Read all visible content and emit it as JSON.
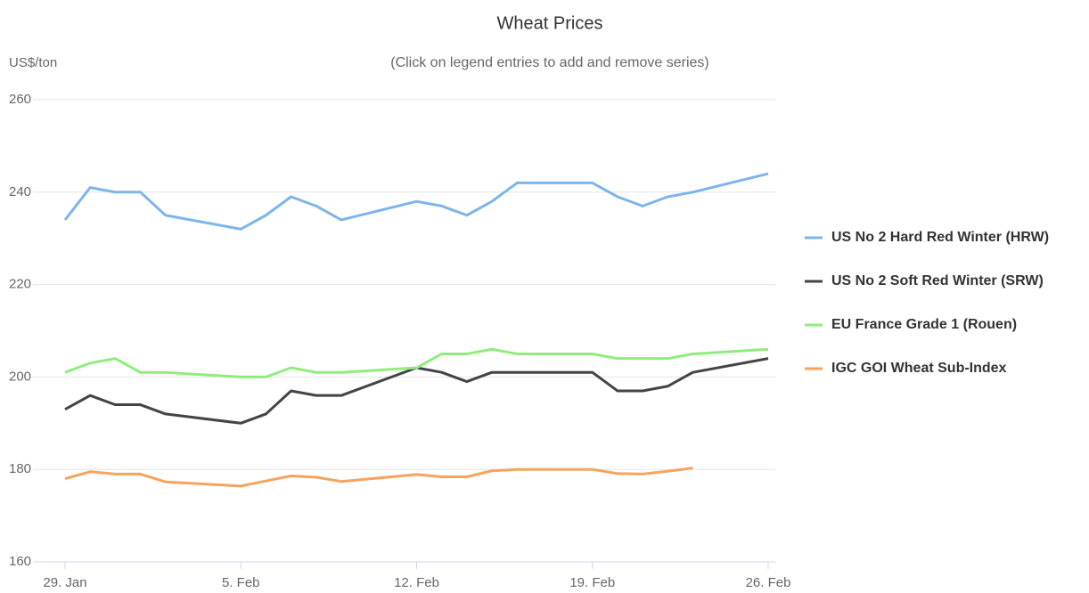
{
  "chart_data": {
    "type": "line",
    "title": "Wheat Prices",
    "subtitle": "(Click on legend entries to add and remove series)",
    "y_axis_label": "US$/ton",
    "x": [
      "01-29",
      "01-30",
      "01-31",
      "02-01",
      "02-02",
      "02-05",
      "02-06",
      "02-07",
      "02-08",
      "02-09",
      "02-12",
      "02-13",
      "02-14",
      "02-15",
      "02-16",
      "02-19",
      "02-20",
      "02-21",
      "02-22",
      "02-23",
      "02-26"
    ],
    "xlim": [
      "01-29",
      "02-26"
    ],
    "xticks": [
      {
        "value": "01-29",
        "label": "29. Jan"
      },
      {
        "value": "02-05",
        "label": "5. Feb"
      },
      {
        "value": "02-12",
        "label": "12. Feb"
      },
      {
        "value": "02-19",
        "label": "19. Feb"
      },
      {
        "value": "02-26",
        "label": "26. Feb"
      }
    ],
    "ylim": [
      160,
      260
    ],
    "yticks": [
      160,
      180,
      200,
      220,
      240,
      260
    ],
    "grid": true,
    "legend": "right",
    "series": [
      {
        "name": "US No 2 Hard Red Winter (HRW)",
        "color": "#7cb5ec",
        "values": [
          234,
          241,
          240,
          240,
          235,
          232,
          235,
          239,
          237,
          234,
          238,
          237,
          235,
          238,
          242,
          242,
          239,
          237,
          239,
          240,
          244
        ]
      },
      {
        "name": "US No 2 Soft Red Winter (SRW)",
        "color": "#434348",
        "values": [
          193,
          196,
          194,
          194,
          192,
          190,
          192,
          197,
          196,
          196,
          202,
          201,
          199,
          201,
          201,
          201,
          197,
          197,
          198,
          201,
          204
        ]
      },
      {
        "name": "EU France Grade 1 (Rouen)",
        "color": "#90ed7d",
        "values": [
          201,
          203,
          204,
          201,
          201,
          200,
          200,
          202,
          201,
          201,
          202,
          205,
          205,
          206,
          205,
          205,
          204,
          204,
          204,
          205,
          206
        ]
      },
      {
        "name": "IGC GOI Wheat Sub-Index",
        "color": "#f7a35c",
        "values": [
          178,
          179.5,
          179,
          179,
          177.3,
          176.4,
          177.5,
          178.6,
          178.3,
          177.4,
          178.9,
          178.4,
          178.4,
          179.7,
          180,
          180,
          179.1,
          179,
          179.6,
          180.3,
          null
        ]
      }
    ]
  }
}
